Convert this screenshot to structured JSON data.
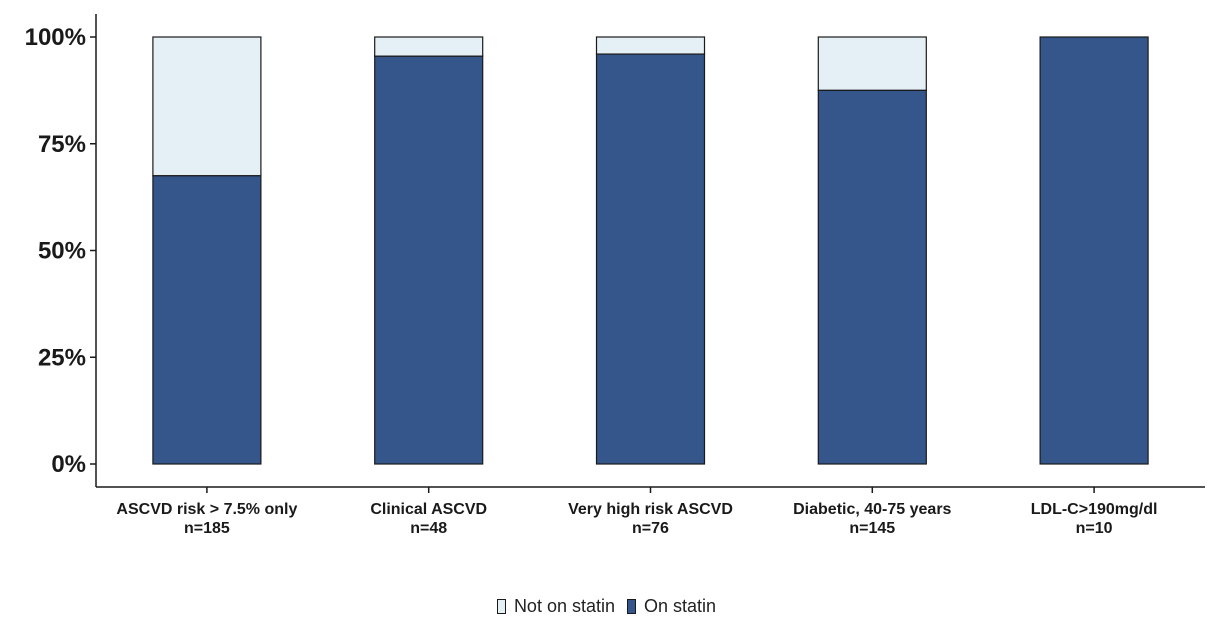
{
  "chart_data": {
    "type": "bar",
    "stacked": true,
    "percent": true,
    "categories": [
      {
        "label": "ASCVD risk > 7.5% only",
        "n": "n=185"
      },
      {
        "label": "Clinical ASCVD",
        "n": "n=48"
      },
      {
        "label": "Very high risk ASCVD",
        "n": "n=76"
      },
      {
        "label": "Diabetic, 40-75 years",
        "n": "n=145"
      },
      {
        "label": "LDL-C>190mg/dl",
        "n": "n=10"
      }
    ],
    "series": [
      {
        "name": "On statin",
        "color": "#34568b",
        "values": [
          67.5,
          95.5,
          96,
          87.5,
          100
        ]
      },
      {
        "name": "Not on statin",
        "color": "#e4f0f5",
        "values": [
          32.5,
          4.5,
          4,
          12.5,
          0
        ]
      }
    ],
    "ylim": [
      0,
      100
    ],
    "yticks": [
      "0%",
      "25%",
      "50%",
      "75%",
      "100%"
    ],
    "ytick_values": [
      0,
      25,
      50,
      75,
      100
    ],
    "grid": false,
    "legend_position": "bottom"
  },
  "legend": {
    "items": [
      {
        "label": "Not on statin",
        "color": "#e4f0f5"
      },
      {
        "label": "On statin",
        "color": "#34568b"
      }
    ]
  }
}
